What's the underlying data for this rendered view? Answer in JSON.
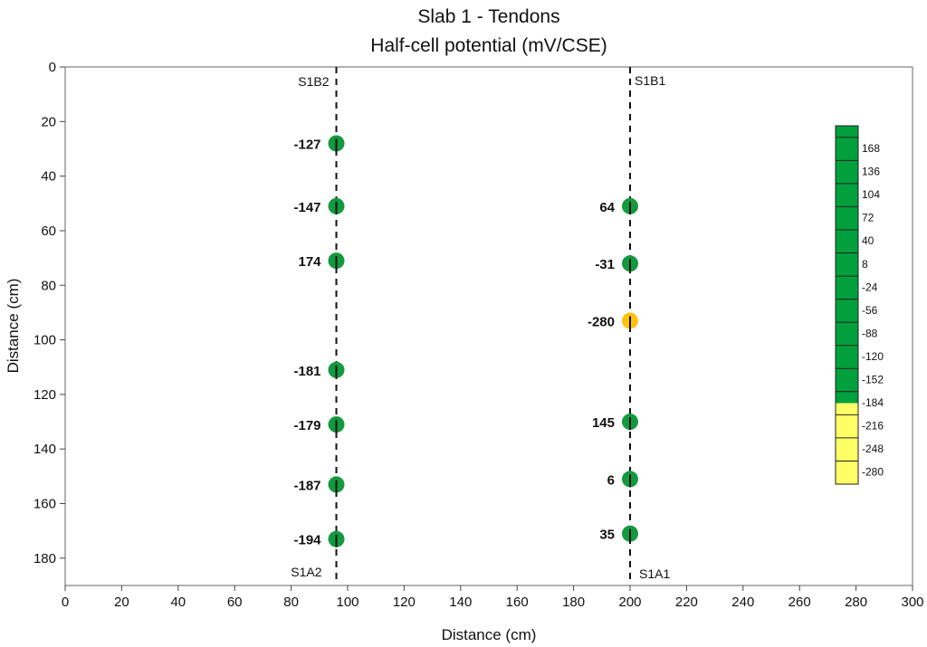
{
  "chart_data": {
    "type": "scatter",
    "title": [
      "Slab 1 - Tendons",
      "Half-cell potential (mV/CSE)"
    ],
    "xlabel": "Distance (cm)",
    "ylabel": "Distance (cm)",
    "xlim": [
      0,
      300
    ],
    "ylim": [
      190,
      0
    ],
    "x_ticks": [
      0,
      20,
      40,
      60,
      80,
      100,
      120,
      140,
      160,
      180,
      200,
      220,
      240,
      260,
      280,
      300
    ],
    "y_ticks": [
      0,
      20,
      40,
      60,
      80,
      100,
      120,
      140,
      160,
      180
    ],
    "grid": false,
    "lines": [
      {
        "x": 96,
        "top_label": "S1B2",
        "bottom_label": "S1A2"
      },
      {
        "x": 200,
        "top_label": "S1B1",
        "bottom_label": "S1A1"
      }
    ],
    "points": [
      {
        "x": 96,
        "y": 28,
        "value": -127,
        "label": "-127"
      },
      {
        "x": 96,
        "y": 51,
        "value": -147,
        "label": "-147"
      },
      {
        "x": 96,
        "y": 71,
        "value": 174,
        "label": "174"
      },
      {
        "x": 96,
        "y": 111,
        "value": -181,
        "label": "-181"
      },
      {
        "x": 96,
        "y": 131,
        "value": -179,
        "label": "-179"
      },
      {
        "x": 96,
        "y": 153,
        "value": -187,
        "label": "-187"
      },
      {
        "x": 96,
        "y": 173,
        "value": -194,
        "label": "-194"
      },
      {
        "x": 200,
        "y": 51,
        "value": 64,
        "label": "64"
      },
      {
        "x": 200,
        "y": 72,
        "value": -31,
        "label": "-31"
      },
      {
        "x": 200,
        "y": 93,
        "value": -280,
        "label": "-280"
      },
      {
        "x": 200,
        "y": 130,
        "value": 145,
        "label": "145"
      },
      {
        "x": 200,
        "y": 151,
        "value": 6,
        "label": "6"
      },
      {
        "x": 200,
        "y": 171,
        "value": 35,
        "label": "35"
      }
    ],
    "colorbar": {
      "labels": [
        "168",
        "136",
        "104",
        "72",
        "40",
        "8",
        "-24",
        "-56",
        "-88",
        "-120",
        "-152",
        "-184",
        "-216",
        "-248",
        "-280"
      ],
      "threshold": -200,
      "colors": {
        "above": "#00a03c",
        "below": "#ffff66",
        "point_above": "#13993f",
        "point_below": "#ffc20e"
      }
    }
  }
}
